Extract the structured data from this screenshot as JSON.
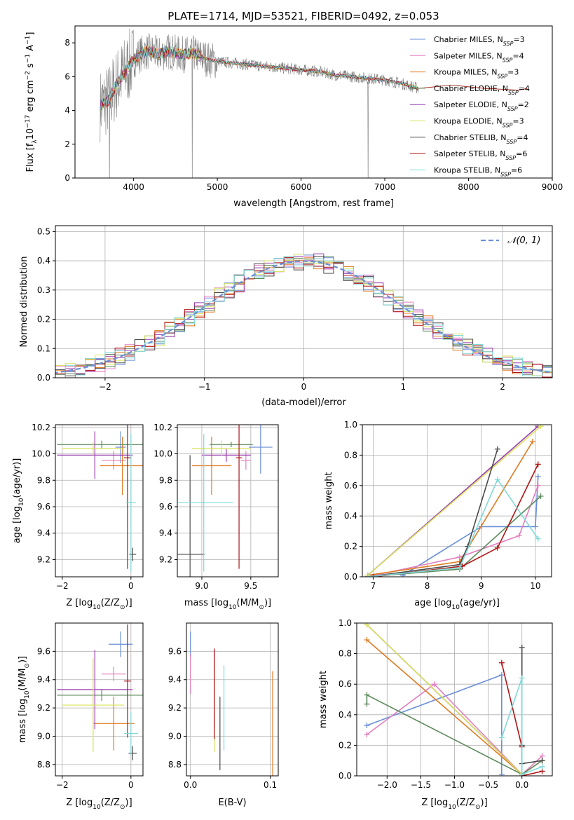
{
  "figure_title": "PLATE=1714, MJD=53521, FIBERID=0492, z=0.053",
  "colors": {
    "Chabrier MILES": "#6a8fd8",
    "Salpeter MILES": "#e37fbf",
    "Kroupa MILES": "#e07b22",
    "Chabrier ELODIE": "#5a8a5a",
    "Salpeter ELODIE": "#9b3bb0",
    "Kroupa ELODIE": "#d6e35a",
    "Chabrier STELIB": "#4a4a4a",
    "Salpeter STELIB": "#b01515",
    "Kroupa STELIB": "#7fd9d9",
    "data_gray": "#808080"
  },
  "legend_spectrum": [
    {
      "name": "Chabrier MILES",
      "pre": "Chabrier MILES, N",
      "sub": "SSP",
      "post": "=3"
    },
    {
      "name": "Salpeter MILES",
      "pre": "Salpeter MILES, N",
      "sub": "SSP",
      "post": "=4"
    },
    {
      "name": "Kroupa MILES",
      "pre": "Kroupa MILES, N",
      "sub": "SSP",
      "post": "=3"
    },
    {
      "name": "Chabrier ELODIE",
      "pre": "Chabrier ELODIE, N",
      "sub": "SSP",
      "post": "=4"
    },
    {
      "name": "Salpeter ELODIE",
      "pre": "Salpeter ELODIE, N",
      "sub": "SSP",
      "post": "=2"
    },
    {
      "name": "Kroupa ELODIE",
      "pre": "Kroupa ELODIE, N",
      "sub": "SSP",
      "post": "=3"
    },
    {
      "name": "Chabrier STELIB",
      "pre": "Chabrier STELIB, N",
      "sub": "SSP",
      "post": "=4"
    },
    {
      "name": "Salpeter STELIB",
      "pre": "Salpeter STELIB, N",
      "sub": "SSP",
      "post": "=6"
    },
    {
      "name": "Kroupa STELIB",
      "pre": "Kroupa STELIB, N",
      "sub": "SSP",
      "post": "=6"
    }
  ],
  "chart_data": [
    {
      "id": "spectrum",
      "type": "line",
      "xlabel": "wavelength [Angstrom, rest frame]",
      "ylabel_main": "Flux [f",
      "ylabel_sub": "λ",
      "ylabel_rest": "10",
      "ylabel_sup1": "−17",
      "ylabel_mid": " erg cm",
      "ylabel_sup2": "−2",
      "ylabel_mid2": " s",
      "ylabel_sup3": "−1",
      "ylabel_mid3": " A",
      "ylabel_sup4": "−1",
      "ylabel_end": "]",
      "xlim": [
        3300,
        9000
      ],
      "ylim": [
        0,
        9
      ],
      "xticks": [
        4000,
        5000,
        6000,
        7000,
        8000,
        9000
      ],
      "yticks": [
        0,
        2,
        4,
        6,
        8
      ],
      "model_anchor_wavelength": [
        3600,
        3700,
        3800,
        3900,
        4000,
        4100,
        4200,
        4300,
        4400,
        4500,
        4600,
        4700,
        4800,
        4900,
        5000,
        5200,
        5400,
        5600,
        5800,
        6000,
        6200,
        6400,
        6600,
        6800,
        7000,
        7200,
        7400
      ],
      "model_anchor_flux": [
        4.3,
        4.6,
        5.6,
        6.3,
        7.0,
        7.4,
        7.5,
        7.3,
        7.5,
        7.4,
        7.3,
        7.4,
        7.2,
        7.0,
        6.9,
        6.8,
        6.7,
        6.6,
        6.5,
        6.4,
        6.3,
        6.1,
        6.0,
        5.9,
        5.8,
        5.6,
        5.3
      ],
      "model_extension_wavelength": [
        7400,
        7600,
        7800,
        8000,
        8200,
        8400,
        8600,
        8700
      ],
      "model_extension_flux": [
        5.3,
        5.4,
        5.5,
        5.4,
        5.3,
        5.25,
        5.2,
        5.3
      ]
    },
    {
      "id": "residuals",
      "type": "histogram",
      "xlabel": "(data-model)/error",
      "ylabel": "Normed distribution",
      "xlim": [
        -2.5,
        2.5
      ],
      "ylim": [
        0,
        0.52
      ],
      "xticks": [
        -2,
        -1,
        0,
        1,
        2
      ],
      "xtick_labels": [
        "−2",
        "−1",
        "0",
        "1",
        "2"
      ],
      "yticks": [
        0.0,
        0.1,
        0.2,
        0.3,
        0.4,
        0.5
      ],
      "ytick_labels": [
        "0.0",
        "0.1",
        "0.2",
        "0.3",
        "0.4",
        "0.5"
      ],
      "bin_width": 0.1,
      "curve_label": "𝒩(0, 1)"
    },
    {
      "id": "age_vs_Z",
      "type": "errorbar",
      "xlabel_pre": "Z [log",
      "xlabel_sub": "10",
      "xlabel_post": "(Z/Z",
      "xlabel_sub2": "⊙",
      "xlabel_end": ")]",
      "ylabel_pre": "age  [log",
      "ylabel_sub": "10",
      "ylabel_post": "(age/yr)]",
      "xlim": [
        -2.2,
        0.35
      ],
      "ylim": [
        9.07,
        10.22
      ],
      "xticks": [
        -2,
        0
      ],
      "xtick_labels": [
        "−2",
        "0"
      ],
      "yticks": [
        9.2,
        9.4,
        9.6,
        9.8,
        10.0,
        10.2
      ],
      "ytick_labels": [
        "9.2",
        "9.4",
        "9.6",
        "9.8",
        "10.0",
        "10.2"
      ],
      "points": [
        {
          "name": "Chabrier MILES",
          "x": -0.3,
          "xerr": 0.15,
          "y": 10.05,
          "yerr": 0.12
        },
        {
          "name": "Salpeter MILES",
          "x": -0.5,
          "xerr": 0.35,
          "y": 9.95,
          "yerr": 0.07
        },
        {
          "name": "Kroupa MILES",
          "x": -0.25,
          "xerr": 0.65,
          "y": 9.91,
          "yerr": 0.22
        },
        {
          "name": "Chabrier ELODIE",
          "x": -0.85,
          "xerr": 1.3,
          "y": 10.07,
          "yerr": 0.03
        },
        {
          "name": "Salpeter ELODIE",
          "x": -1.05,
          "xerr": 1.1,
          "y": 9.99,
          "yerr": 0.18
        },
        {
          "name": "Kroupa ELODIE",
          "x": -1.1,
          "xerr": 0.9,
          "y": 10.04,
          "yerr": 0.05
        },
        {
          "name": "Chabrier STELIB",
          "x": 0.05,
          "xerr": 0.1,
          "y": 9.24,
          "yerr": 0.05
        },
        {
          "name": "Salpeter STELIB",
          "x": -0.1,
          "xerr": 0.1,
          "y": 9.97,
          "yerr": 0.84
        },
        {
          "name": "Kroupa STELIB",
          "x": 0.0,
          "xerr": 0.15,
          "y": 9.63,
          "yerr": 0.52
        }
      ]
    },
    {
      "id": "age_vs_mass",
      "type": "errorbar",
      "xlabel_pre": "mass [log",
      "xlabel_sub": "10",
      "xlabel_post": "(M/M",
      "xlabel_sub2": "⊙",
      "xlabel_end": ")]",
      "xlim": [
        8.75,
        9.78
      ],
      "ylim": [
        9.07,
        10.22
      ],
      "xticks": [
        9.0,
        9.5
      ],
      "xtick_labels": [
        "9.0",
        "9.5"
      ],
      "yticks": [
        9.2,
        9.4,
        9.6,
        9.8,
        10.0,
        10.2
      ],
      "ytick_labels": [
        "9.2",
        "9.4",
        "9.6",
        "9.8",
        "10.0",
        "10.2"
      ],
      "points": [
        {
          "name": "Chabrier MILES",
          "x": 9.6,
          "xerr": 0.12,
          "y": 10.05,
          "yerr": 0.2
        },
        {
          "name": "Salpeter MILES",
          "x": 9.45,
          "xerr": 0.05,
          "y": 9.95,
          "yerr": 0.07
        },
        {
          "name": "Kroupa MILES",
          "x": 9.1,
          "xerr": 0.2,
          "y": 9.91,
          "yerr": 0.22
        },
        {
          "name": "Chabrier ELODIE",
          "x": 9.3,
          "xerr": 0.22,
          "y": 10.07,
          "yerr": 0.02
        },
        {
          "name": "Salpeter ELODIE",
          "x": 9.25,
          "xerr": 0.25,
          "y": 9.99,
          "yerr": 0.05
        },
        {
          "name": "Kroupa ELODIE",
          "x": 9.2,
          "xerr": 0.3,
          "y": 10.04,
          "yerr": 0.06
        },
        {
          "name": "Chabrier STELIB",
          "x": 8.88,
          "xerr": 0.15,
          "y": 9.24,
          "yerr": 0.75
        },
        {
          "name": "Salpeter STELIB",
          "x": 9.38,
          "xerr": 0.03,
          "y": 9.97,
          "yerr": 0.84
        },
        {
          "name": "Kroupa STELIB",
          "x": 9.02,
          "xerr": 0.3,
          "y": 9.63,
          "yerr": 0.52
        }
      ]
    },
    {
      "id": "weight_vs_age",
      "type": "line",
      "xlabel_pre": "age  [log",
      "xlabel_sub": "10",
      "xlabel_post": "(age/yr)]",
      "ylabel": "mass weight",
      "xlim": [
        6.8,
        10.3
      ],
      "ylim": [
        0,
        1
      ],
      "xticks": [
        7,
        8,
        9,
        10
      ],
      "yticks": [
        0.0,
        0.2,
        0.4,
        0.6,
        0.8,
        1.0
      ],
      "ytick_labels": [
        "0.0",
        "0.2",
        "0.4",
        "0.6",
        "0.8",
        "1.0"
      ],
      "series": [
        {
          "name": "Chabrier MILES",
          "x": [
            7.55,
            9.0,
            10.0,
            10.05
          ],
          "y": [
            0.01,
            0.33,
            0.33,
            0.66
          ]
        },
        {
          "name": "Salpeter MILES",
          "x": [
            6.9,
            8.6,
            9.7,
            10.05
          ],
          "y": [
            0.0,
            0.13,
            0.27,
            0.6
          ]
        },
        {
          "name": "Kroupa MILES",
          "x": [
            6.9,
            8.6,
            9.95
          ],
          "y": [
            0.01,
            0.1,
            0.89
          ]
        },
        {
          "name": "Chabrier ELODIE",
          "x": [
            6.9,
            8.6,
            10.1
          ],
          "y": [
            0.0,
            0.05,
            0.53
          ]
        },
        {
          "name": "Salpeter ELODIE",
          "x": [
            6.9,
            10.05
          ],
          "y": [
            0.01,
            0.99
          ]
        },
        {
          "name": "Kroupa ELODIE",
          "x": [
            6.9,
            10.1
          ],
          "y": [
            0.01,
            0.99
          ]
        },
        {
          "name": "Chabrier STELIB",
          "x": [
            6.9,
            8.6,
            8.75,
            9.3
          ],
          "y": [
            0.0,
            0.08,
            0.2,
            0.84
          ]
        },
        {
          "name": "Salpeter STELIB",
          "x": [
            7.0,
            8.65,
            9.3,
            10.05
          ],
          "y": [
            0.0,
            0.07,
            0.19,
            0.74
          ]
        },
        {
          "name": "Kroupa STELIB",
          "x": [
            6.9,
            8.6,
            9.3,
            10.05
          ],
          "y": [
            0.0,
            0.06,
            0.64,
            0.25
          ]
        }
      ]
    },
    {
      "id": "mass_vs_Z",
      "type": "errorbar",
      "xlabel_pre": "Z [log",
      "xlabel_sub": "10",
      "xlabel_post": "(Z/Z",
      "xlabel_sub2": "⊙",
      "xlabel_end": ")]",
      "ylabel_pre": "mass [log",
      "ylabel_sub": "10",
      "ylabel_post": "(M/M",
      "ylabel_sub2": "⊙",
      "ylabel_end": ")]",
      "xlim": [
        -2.2,
        0.35
      ],
      "ylim": [
        8.72,
        9.8
      ],
      "xticks": [
        -2,
        0
      ],
      "xtick_labels": [
        "−2",
        "0"
      ],
      "yticks": [
        8.8,
        9.0,
        9.2,
        9.4,
        9.6
      ],
      "ytick_labels": [
        "8.8",
        "9.0",
        "9.2",
        "9.4",
        "9.6"
      ],
      "points": [
        {
          "name": "Chabrier MILES",
          "x": -0.3,
          "xerr": 0.35,
          "y": 9.65,
          "yerr": 0.09
        },
        {
          "name": "Salpeter MILES",
          "x": -0.5,
          "xerr": 0.35,
          "y": 9.44,
          "yerr": 0.05
        },
        {
          "name": "Kroupa MILES",
          "x": -0.5,
          "xerr": 0.6,
          "y": 9.09,
          "yerr": 0.19
        },
        {
          "name": "Chabrier ELODIE",
          "x": -0.85,
          "xerr": 1.3,
          "y": 9.29,
          "yerr": 0.04
        },
        {
          "name": "Salpeter ELODIE",
          "x": -1.05,
          "xerr": 1.1,
          "y": 9.33,
          "yerr": 0.28
        },
        {
          "name": "Kroupa ELODIE",
          "x": -1.1,
          "xerr": 0.9,
          "y": 9.22,
          "yerr": 0.33
        },
        {
          "name": "Chabrier STELIB",
          "x": 0.05,
          "xerr": 0.12,
          "y": 8.88,
          "yerr": 0.05
        },
        {
          "name": "Salpeter STELIB",
          "x": -0.1,
          "xerr": 0.1,
          "y": 9.39,
          "yerr": 0.4
        },
        {
          "name": "Kroupa STELIB",
          "x": 0.0,
          "xerr": 0.2,
          "y": 9.02,
          "yerr": 0.15
        }
      ]
    },
    {
      "id": "mass_vs_ebv",
      "type": "errorbar",
      "xlabel": "E(B-V)",
      "xlim": [
        -0.005,
        0.11
      ],
      "ylim": [
        8.72,
        9.8
      ],
      "xticks": [
        0.0,
        0.1
      ],
      "xtick_labels": [
        "0.0",
        "0.1"
      ],
      "yticks": [
        8.8,
        9.0,
        9.2,
        9.4,
        9.6
      ],
      "ytick_labels": [
        "8.8",
        "9.0",
        "9.2",
        "9.4",
        "9.6"
      ],
      "points": [
        {
          "name": "Chabrier MILES",
          "x": 0.0,
          "xerr": 0,
          "y": 9.65,
          "yerr": 0.09
        },
        {
          "name": "Salpeter MILES",
          "x": 0.0,
          "xerr": 0,
          "y": 9.44,
          "yerr": 0.14
        },
        {
          "name": "Kroupa MILES",
          "x": 0.103,
          "xerr": 0,
          "y": 9.09,
          "yerr": 0.37
        },
        {
          "name": "Chabrier ELODIE",
          "x": 0.03,
          "xerr": 0,
          "y": 9.29,
          "yerr": 0.04
        },
        {
          "name": "Salpeter ELODIE",
          "x": 0.03,
          "xerr": 0,
          "y": 9.33,
          "yerr": 0.28
        },
        {
          "name": "Kroupa ELODIE",
          "x": 0.03,
          "xerr": 0,
          "y": 9.22,
          "yerr": 0.33
        },
        {
          "name": "Chabrier STELIB",
          "x": 0.037,
          "xerr": 0,
          "y": 9.02,
          "yerr": 0.26
        },
        {
          "name": "Salpeter STELIB",
          "x": 0.03,
          "xerr": 0,
          "y": 9.3,
          "yerr": 0.32
        },
        {
          "name": "Kroupa STELIB",
          "x": 0.042,
          "xerr": 0,
          "y": 9.2,
          "yerr": 0.3
        }
      ]
    },
    {
      "id": "weight_vs_Z",
      "type": "line",
      "xlabel_pre": "Z [log",
      "xlabel_sub": "10",
      "xlabel_post": "(Z/Z",
      "xlabel_sub2": "⊙",
      "xlabel_end": ")]",
      "ylabel": "mass weight",
      "xlim": [
        -2.45,
        0.45
      ],
      "ylim": [
        0,
        1
      ],
      "xticks": [
        -2.0,
        -1.5,
        -1.0,
        -0.5,
        0.0
      ],
      "xtick_labels": [
        "−2.0",
        "−1.5",
        "−1.0",
        "−0.5",
        "0.0"
      ],
      "yticks": [
        0.0,
        0.2,
        0.4,
        0.6,
        0.8,
        1.0
      ],
      "ytick_labels": [
        "0.0",
        "0.2",
        "0.4",
        "0.6",
        "0.8",
        "1.0"
      ],
      "series": [
        {
          "name": "Chabrier MILES",
          "x": [
            -2.3,
            -0.3,
            -0.3
          ],
          "y": [
            0.33,
            0.66,
            0.01
          ]
        },
        {
          "name": "Salpeter MILES",
          "x": [
            -2.3,
            -1.3,
            0.0,
            0.3
          ],
          "y": [
            0.27,
            0.6,
            0.01,
            0.13
          ]
        },
        {
          "name": "Kroupa MILES",
          "x": [
            -2.3,
            0.0,
            0.3
          ],
          "y": [
            0.89,
            0.01,
            0.1
          ]
        },
        {
          "name": "Chabrier ELODIE",
          "x": [
            -2.3,
            -2.3,
            0.0,
            0.3
          ],
          "y": [
            0.47,
            0.53,
            0.01,
            0.1
          ]
        },
        {
          "name": "Salpeter ELODIE",
          "x": [
            -2.3,
            0.0
          ],
          "y": [
            0.99,
            0.01
          ]
        },
        {
          "name": "Kroupa ELODIE",
          "x": [
            -2.3,
            0.0
          ],
          "y": [
            0.99,
            0.01
          ]
        },
        {
          "name": "Chabrier STELIB",
          "x": [
            0.0,
            0.0,
            0.0,
            0.3
          ],
          "y": [
            0.84,
            0.2,
            0.08,
            0.1
          ]
        },
        {
          "name": "Salpeter STELIB",
          "x": [
            -0.3,
            0.0,
            0.0,
            0.3
          ],
          "y": [
            0.74,
            0.19,
            0.0,
            0.03
          ]
        },
        {
          "name": "Kroupa STELIB",
          "x": [
            -0.3,
            0.0,
            0.0,
            0.3
          ],
          "y": [
            0.25,
            0.64,
            0.01,
            0.06
          ]
        }
      ]
    }
  ]
}
